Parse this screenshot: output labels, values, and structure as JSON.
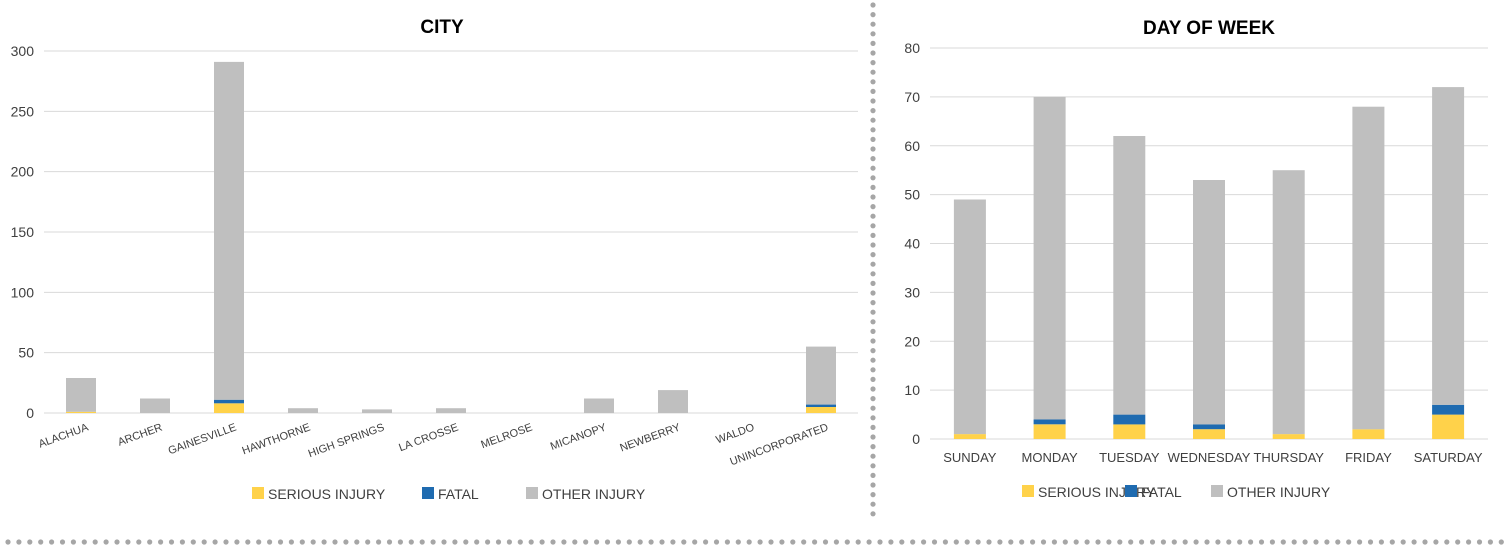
{
  "colors": {
    "serious": "#FFD24A",
    "fatal": "#1F6BB0",
    "other": "#BFBFBF",
    "grid": "#D9D9D9",
    "text": "#404040",
    "dots": "#A6A6A6"
  },
  "chart_data": [
    {
      "type": "bar",
      "stacked": true,
      "title": "CITY",
      "xlabel": "",
      "ylabel": "",
      "ylim": [
        0,
        300
      ],
      "yticks": [
        0,
        50,
        100,
        150,
        200,
        250,
        300
      ],
      "grid": true,
      "legend_position": "bottom",
      "categories": [
        "ALACHUA",
        "ARCHER",
        "GAINESVILLE",
        "HAWTHORNE",
        "HIGH SPRINGS",
        "LA CROSSE",
        "MELROSE",
        "MICANOPY",
        "NEWBERRY",
        "WALDO",
        "UNINCORPORATED"
      ],
      "series": [
        {
          "name": "SERIOUS INJURY",
          "color_key": "serious",
          "values": [
            1,
            0,
            8,
            0,
            0,
            0,
            0,
            0,
            0,
            0,
            5
          ]
        },
        {
          "name": "FATAL",
          "color_key": "fatal",
          "values": [
            0,
            0,
            3,
            0,
            0,
            0,
            0,
            0,
            0,
            0,
            2
          ]
        },
        {
          "name": "OTHER INJURY",
          "color_key": "other",
          "values": [
            28,
            12,
            280,
            4,
            3,
            4,
            0,
            12,
            19,
            0,
            48
          ]
        }
      ]
    },
    {
      "type": "bar",
      "stacked": true,
      "title": "DAY OF WEEK",
      "xlabel": "",
      "ylabel": "",
      "ylim": [
        0,
        80
      ],
      "yticks": [
        0,
        10,
        20,
        30,
        40,
        50,
        60,
        70,
        80
      ],
      "grid": true,
      "legend_position": "bottom",
      "categories": [
        "SUNDAY",
        "MONDAY",
        "TUESDAY",
        "WEDNESDAY",
        "THURSDAY",
        "FRIDAY",
        "SATURDAY"
      ],
      "series": [
        {
          "name": "SERIOUS INJURY",
          "color_key": "serious",
          "values": [
            1,
            3,
            3,
            2,
            1,
            2,
            5
          ]
        },
        {
          "name": "FATAL",
          "color_key": "fatal",
          "values": [
            0,
            1,
            2,
            1,
            0,
            0,
            2
          ]
        },
        {
          "name": "OTHER INJURY",
          "color_key": "other",
          "values": [
            48,
            66,
            57,
            50,
            54,
            66,
            65
          ]
        }
      ]
    }
  ]
}
